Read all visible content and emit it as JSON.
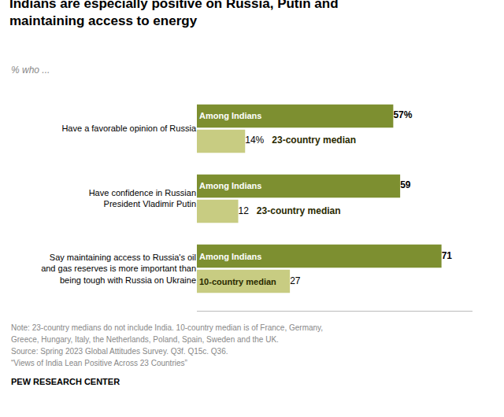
{
  "chart_data": {
    "type": "bar",
    "orientation": "horizontal",
    "title": "Indians are especially positive on Russia, Putin and\nmaintaining access to energy",
    "subtitle": "% who ...",
    "categories": [
      "Have a favorable opinion of Russia",
      "Have confidence in Russian\nPresident Vladimir Putin",
      "Say maintaining access to Russia's oil\nand gas reserves is more important than\nbeing tough with Russia on Ukraine"
    ],
    "series": [
      {
        "labels": [
          "Among Indians",
          "Among Indians",
          "Among Indians"
        ],
        "color": "#7d8f30",
        "values": [
          57,
          59,
          71
        ],
        "value_labels": [
          "57%",
          "59",
          "71"
        ]
      },
      {
        "labels": [
          "23-country median",
          "23-country median",
          "10-country median"
        ],
        "color": "#c8cc82",
        "values": [
          14,
          12,
          27
        ],
        "value_labels": [
          "14%",
          "12",
          "27"
        ]
      }
    ],
    "xlim": [
      0,
      80
    ],
    "xticks": [],
    "grid": false,
    "data_labels": true,
    "tick_labels": "y",
    "notes": [
      "Note: 23-country medians do not include India. 10-country median is of France, Germany,",
      "Greece, Hungary, Italy, the Netherlands, Poland, Spain, Sweden and the UK.",
      "Source: Spring 2023 Global Attitudes Survey. Q3f. Q15c. Q36.",
      "“Views of India Lean Positive Across 23 Countries”"
    ],
    "source": "PEW RESEARCH CENTER"
  }
}
